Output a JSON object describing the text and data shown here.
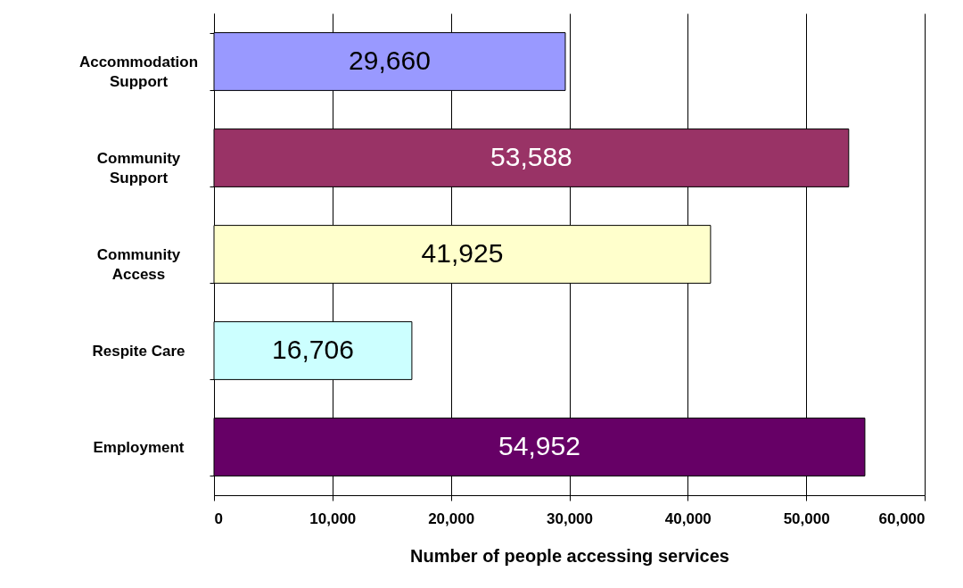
{
  "chart_data": {
    "type": "bar",
    "orientation": "horizontal",
    "xlabel": "Number of people accessing services",
    "categories": [
      "Accommodation Support",
      "Community Support",
      "Community Access",
      "Respite Care",
      "Employment"
    ],
    "values": [
      29660,
      53588,
      41925,
      16706,
      54952
    ],
    "colors": [
      "#9999ff",
      "#993366",
      "#ffffcc",
      "#ccffff",
      "#660066"
    ],
    "value_labels": [
      "29,660",
      "53,588",
      "41,925",
      "16,706",
      "54,952"
    ],
    "xlim": [
      0,
      60000
    ],
    "xticks": [
      {
        "value": 0,
        "label": "0"
      },
      {
        "value": 10000,
        "label": "10,000"
      },
      {
        "value": 20000,
        "label": "20,000"
      },
      {
        "value": 30000,
        "label": "30,000"
      },
      {
        "value": 40000,
        "label": "40,000"
      },
      {
        "value": 50000,
        "label": "50,000"
      },
      {
        "value": 60000,
        "label": "60,000"
      }
    ],
    "grid": "x"
  }
}
